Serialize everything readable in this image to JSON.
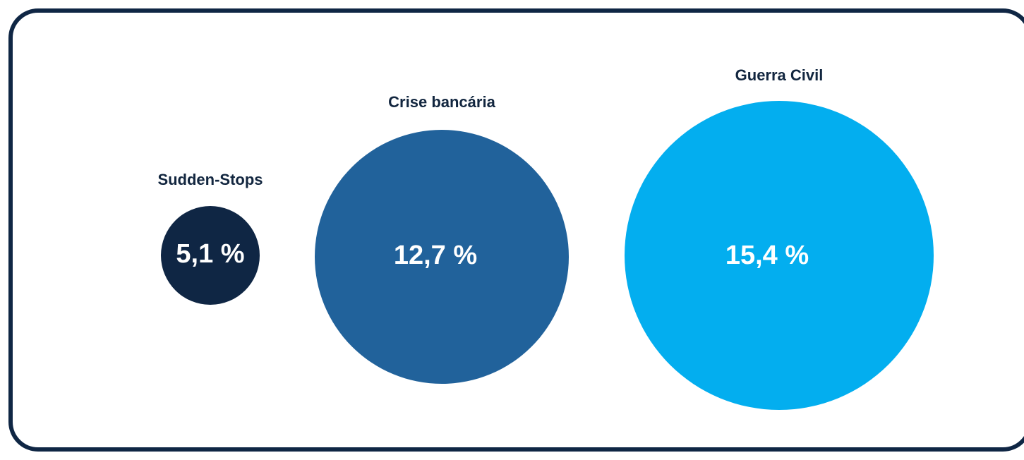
{
  "chart_data": {
    "type": "bubble",
    "title": "",
    "series": [
      {
        "label": "Sudden-Stops",
        "value": 5.1,
        "display": "5,1 %",
        "color": "#0f2644"
      },
      {
        "label": "Crise bancária",
        "value": 12.7,
        "display": "12,7 %",
        "color": "#21629b"
      },
      {
        "label": "Guerra Civil",
        "value": 15.4,
        "display": "15,4 %",
        "color": "#03aeef"
      }
    ]
  }
}
